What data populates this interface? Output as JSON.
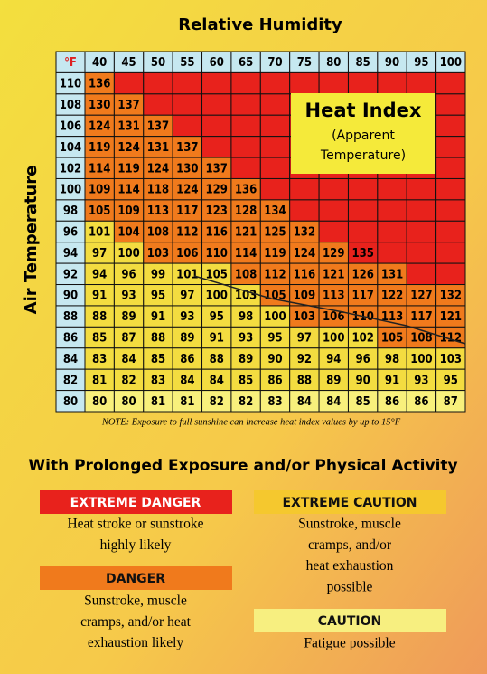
{
  "title": "Relative Humidity",
  "axis_label": "Air Temperature",
  "corner": "°F",
  "columns": [
    40,
    45,
    50,
    55,
    60,
    65,
    70,
    75,
    80,
    85,
    90,
    95,
    100
  ],
  "rows": [
    {
      "temp": 110,
      "values": [
        136
      ]
    },
    {
      "temp": 108,
      "values": [
        130,
        137
      ]
    },
    {
      "temp": 106,
      "values": [
        124,
        131,
        137
      ]
    },
    {
      "temp": 104,
      "values": [
        119,
        124,
        131,
        137
      ]
    },
    {
      "temp": 102,
      "values": [
        114,
        119,
        124,
        130,
        137
      ]
    },
    {
      "temp": 100,
      "values": [
        109,
        114,
        118,
        124,
        129,
        136
      ]
    },
    {
      "temp": 98,
      "values": [
        105,
        109,
        113,
        117,
        123,
        128,
        134
      ]
    },
    {
      "temp": 96,
      "values": [
        101,
        104,
        108,
        112,
        116,
        121,
        125,
        132
      ]
    },
    {
      "temp": 94,
      "values": [
        97,
        100,
        103,
        106,
        110,
        114,
        119,
        124,
        129,
        135
      ]
    },
    {
      "temp": 92,
      "values": [
        94,
        96,
        99,
        101,
        105,
        108,
        112,
        116,
        121,
        126,
        131
      ]
    },
    {
      "temp": 90,
      "values": [
        91,
        93,
        95,
        97,
        100,
        103,
        105,
        109,
        113,
        117,
        122,
        127,
        132
      ]
    },
    {
      "temp": 88,
      "values": [
        88,
        89,
        91,
        93,
        95,
        98,
        100,
        103,
        106,
        110,
        113,
        117,
        121
      ]
    },
    {
      "temp": 86,
      "values": [
        85,
        87,
        88,
        89,
        91,
        93,
        95,
        97,
        100,
        102,
        105,
        108,
        112
      ]
    },
    {
      "temp": 84,
      "values": [
        83,
        84,
        85,
        86,
        88,
        89,
        90,
        92,
        94,
        96,
        98,
        100,
        103
      ]
    },
    {
      "temp": 82,
      "values": [
        81,
        82,
        83,
        84,
        84,
        85,
        86,
        88,
        89,
        90,
        91,
        93,
        95
      ]
    },
    {
      "temp": 80,
      "values": [
        80,
        80,
        81,
        81,
        82,
        82,
        83,
        84,
        84,
        85,
        86,
        86,
        87
      ]
    }
  ],
  "callout": {
    "title": "Heat Index",
    "subtitle": [
      "(Apparent",
      "Temperature)"
    ]
  },
  "note": "NOTE: Exposure to full sunshine can increase heat index values by up to 15°F",
  "legend": {
    "title": "With Prolonged Exposure and/or Physical Activity",
    "items": [
      {
        "label": "EXTREME DANGER",
        "description": [
          "Heat stroke or sunstroke",
          "highly likely"
        ]
      },
      {
        "label": "DANGER",
        "description": [
          "Sunstroke, muscle",
          "cramps, and/or heat",
          "exhaustion likely"
        ]
      },
      {
        "label": "EXTREME CAUTION",
        "description": [
          "Sunstroke, muscle",
          "cramps, and/or",
          "heat exhaustion",
          "possible"
        ]
      },
      {
        "label": "CAUTION",
        "description": [
          "Fatigue possible"
        ]
      }
    ]
  }
}
